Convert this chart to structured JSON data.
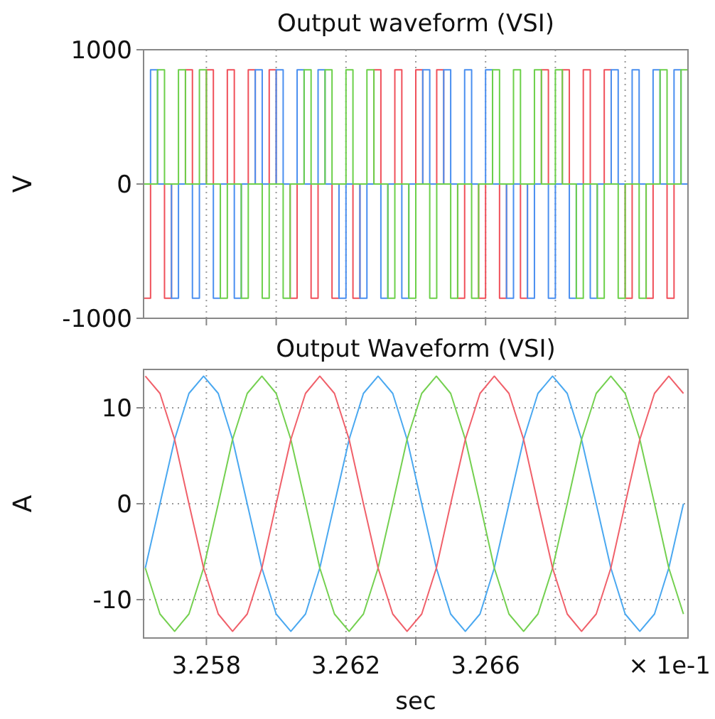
{
  "chart_data": [
    {
      "type": "step",
      "title": "Output waveform (VSI)",
      "ylabel": "V",
      "xlim": [
        3.2562,
        3.2718
      ],
      "ylim": [
        -1000,
        1000
      ],
      "yticks": [
        -1000,
        0,
        1000
      ],
      "xticks": [
        {
          "value": 3.258,
          "label": null
        },
        {
          "value": 3.26,
          "label": null
        },
        {
          "value": 3.262,
          "label": null
        },
        {
          "value": 3.264,
          "label": null
        },
        {
          "value": 3.266,
          "label": null
        },
        {
          "value": 3.268,
          "label": null
        },
        {
          "value": 3.27,
          "label": null
        }
      ],
      "tick_labels": "y",
      "grid": "x",
      "x": [
        3.2562,
        3.2564,
        3.2566,
        3.2568,
        3.257,
        3.2572,
        3.2574,
        3.2576,
        3.2578,
        3.258,
        3.2582,
        3.2584,
        3.2586,
        3.2588,
        3.259,
        3.2592,
        3.2594,
        3.2596,
        3.2598,
        3.26,
        3.2602,
        3.2604,
        3.2606,
        3.2608,
        3.261,
        3.2612,
        3.2614,
        3.2616,
        3.2618,
        3.262,
        3.2622,
        3.2624,
        3.2626,
        3.2628,
        3.263,
        3.2632,
        3.2634,
        3.2636,
        3.2638,
        3.264,
        3.2642,
        3.2644,
        3.2646,
        3.2648,
        3.265,
        3.2652,
        3.2654,
        3.2656,
        3.2658,
        3.266,
        3.2662,
        3.2664,
        3.2666,
        3.2668,
        3.267,
        3.2672,
        3.2674,
        3.2676,
        3.2678,
        3.268,
        3.2682,
        3.2684,
        3.2686,
        3.2688,
        3.269,
        3.2692,
        3.2694,
        3.2696,
        3.2698,
        3.27,
        3.2702,
        3.2704,
        3.2706,
        3.2708,
        3.271,
        3.2712,
        3.2714,
        3.2716,
        3.2718
      ],
      "series": [
        {
          "color": "#f0505a",
          "values": [
            -850,
            0,
            0,
            -850,
            0,
            0,
            850,
            0,
            0,
            850,
            0,
            0,
            850,
            0,
            0,
            850,
            0,
            0,
            850,
            0,
            0,
            -850,
            0,
            0,
            -850,
            0,
            0,
            -850,
            0,
            0,
            -850,
            0,
            0,
            850,
            0,
            0,
            850,
            0,
            0,
            850,
            0,
            0,
            850,
            0,
            0,
            -850,
            0,
            0,
            -850,
            0,
            0,
            -850,
            0,
            0,
            -850,
            0,
            0,
            850,
            0,
            0,
            850,
            0,
            0,
            850,
            0,
            0,
            850,
            0,
            0,
            -850,
            0,
            0,
            -850,
            0,
            0,
            -850,
            0,
            0,
            0
          ]
        },
        {
          "color": "#4a8ff0",
          "values": [
            0,
            850,
            0,
            0,
            -850,
            0,
            0,
            -850,
            0,
            0,
            -850,
            0,
            0,
            -850,
            0,
            0,
            850,
            0,
            0,
            850,
            0,
            0,
            850,
            0,
            0,
            850,
            0,
            0,
            -850,
            0,
            0,
            -850,
            0,
            0,
            -850,
            0,
            0,
            -850,
            0,
            0,
            850,
            0,
            0,
            850,
            0,
            0,
            850,
            0,
            0,
            850,
            0,
            0,
            -850,
            0,
            0,
            -850,
            0,
            0,
            -850,
            0,
            0,
            -850,
            0,
            0,
            -850,
            0,
            0,
            850,
            0,
            0,
            850,
            0,
            0,
            850,
            0,
            0,
            850,
            0,
            0
          ]
        },
        {
          "color": "#6cd04a",
          "values": [
            0,
            0,
            850,
            0,
            0,
            850,
            0,
            0,
            850,
            0,
            0,
            -850,
            0,
            0,
            -850,
            0,
            0,
            -850,
            0,
            0,
            -850,
            0,
            0,
            850,
            0,
            0,
            850,
            0,
            0,
            850,
            0,
            0,
            850,
            0,
            0,
            -850,
            0,
            0,
            -850,
            0,
            0,
            -850,
            0,
            0,
            -850,
            0,
            0,
            -850,
            0,
            0,
            850,
            0,
            0,
            850,
            0,
            0,
            850,
            0,
            0,
            850,
            0,
            0,
            -850,
            0,
            0,
            -850,
            0,
            0,
            -850,
            0,
            0,
            -850,
            0,
            0,
            850,
            0,
            0,
            850,
            0
          ]
        }
      ]
    },
    {
      "type": "line",
      "title": "Output Waveform (VSI)",
      "ylabel": "A",
      "xlabel": "sec",
      "annotations": [
        "× 1e-1"
      ],
      "xlim": [
        3.2562,
        3.2718
      ],
      "ylim": [
        -14,
        14
      ],
      "yticks": [
        -10,
        0,
        10
      ],
      "xticks": [
        3.258,
        {
          "value": 3.26,
          "label": null
        },
        3.262,
        {
          "value": 3.264,
          "label": null
        },
        3.266,
        {
          "value": 3.268,
          "label": null
        },
        {
          "value": 3.27,
          "label": null
        }
      ],
      "grid": true,
      "x": [
        3.25625,
        3.25667,
        3.25709,
        3.2575,
        3.25792,
        3.25834,
        3.25875,
        3.25917,
        3.25959,
        3.26,
        3.26042,
        3.26084,
        3.26125,
        3.26167,
        3.26209,
        3.2625,
        3.26292,
        3.26334,
        3.26375,
        3.26417,
        3.26459,
        3.265,
        3.26542,
        3.26584,
        3.26625,
        3.26667,
        3.26709,
        3.2675,
        3.26792,
        3.26834,
        3.26875,
        3.26917,
        3.26959,
        3.27,
        3.27042,
        3.27084,
        3.27125,
        3.27167
      ],
      "series": [
        {
          "color": "#4aa8f0",
          "values": [
            -6.7,
            0,
            6.7,
            11.5,
            13.3,
            11.5,
            6.7,
            0,
            -6.7,
            -11.5,
            -13.3,
            -11.5,
            -6.7,
            0,
            6.7,
            11.5,
            13.3,
            11.5,
            6.7,
            0,
            -6.7,
            -11.5,
            -13.3,
            -11.5,
            -6.7,
            0,
            6.7,
            11.5,
            13.3,
            11.5,
            6.7,
            0,
            -6.7,
            -11.5,
            -13.3,
            -11.5,
            -6.7,
            0
          ]
        },
        {
          "color": "#74d050",
          "values": [
            -6.7,
            -11.5,
            -13.3,
            -11.5,
            -6.7,
            0,
            6.7,
            11.5,
            13.3,
            11.5,
            6.7,
            0,
            -6.7,
            -11.5,
            -13.3,
            -11.5,
            -6.7,
            0,
            6.7,
            11.5,
            13.3,
            11.5,
            6.7,
            0,
            -6.7,
            -11.5,
            -13.3,
            -11.5,
            -6.7,
            0,
            6.7,
            11.5,
            13.3,
            11.5,
            6.7,
            0,
            -6.7,
            -11.5
          ]
        },
        {
          "color": "#f0606a",
          "values": [
            13.3,
            11.5,
            6.7,
            0,
            -6.7,
            -11.5,
            -13.3,
            -11.5,
            -6.7,
            0,
            6.7,
            11.5,
            13.3,
            11.5,
            6.7,
            0,
            -6.7,
            -11.5,
            -13.3,
            -11.5,
            -6.7,
            0,
            6.7,
            11.5,
            13.3,
            11.5,
            6.7,
            0,
            -6.7,
            -11.5,
            -13.3,
            -11.5,
            -6.7,
            0,
            6.7,
            11.5,
            13.3,
            11.5
          ]
        }
      ]
    }
  ]
}
